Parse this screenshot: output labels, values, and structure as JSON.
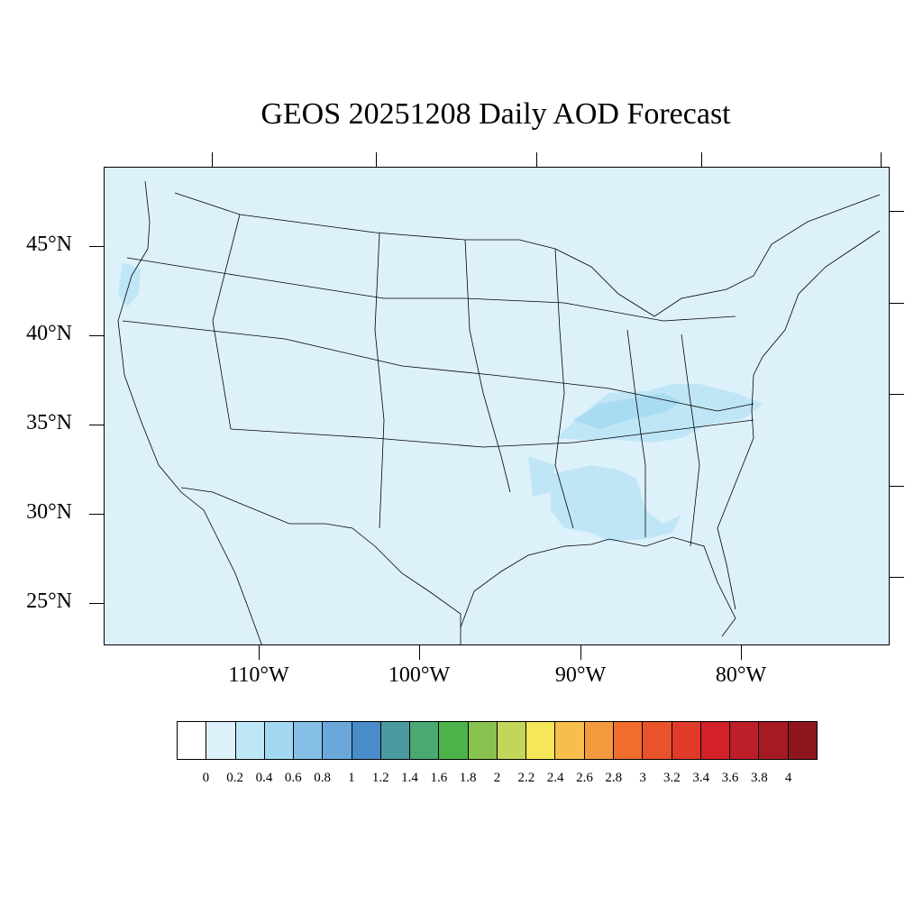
{
  "title": "GEOS 20251208 Daily AOD Forecast",
  "map": {
    "background_color": "#ddf1fa",
    "aod_light_color": "#bfe6f7",
    "aod_medium_color": "#a8dcf3",
    "lat_labels": [
      "45°N",
      "40°N",
      "35°N",
      "30°N",
      "25°N"
    ],
    "lon_labels": [
      "110°W",
      "100°W",
      "90°W",
      "80°W"
    ]
  },
  "colorbar": {
    "colors": [
      "#ffffff",
      "#ddf1fa",
      "#bfe6f7",
      "#a2d8f2",
      "#85bfe6",
      "#6aa8dc",
      "#4a8cc9",
      "#4a9aa0",
      "#4aa872",
      "#4bb349",
      "#87c24e",
      "#c3d65a",
      "#f5e65a",
      "#f6be4a",
      "#f49a3e",
      "#f06d2e",
      "#e8532c",
      "#e03a28",
      "#d42129",
      "#be1e28",
      "#a61b22",
      "#8f161d"
    ],
    "labels": [
      "0",
      "0.2",
      "0.4",
      "0.6",
      "0.8",
      "1",
      "1.2",
      "1.4",
      "1.6",
      "1.8",
      "2",
      "2.2",
      "2.4",
      "2.6",
      "2.8",
      "3",
      "3.2",
      "3.4",
      "3.6",
      "3.8",
      "4"
    ]
  }
}
